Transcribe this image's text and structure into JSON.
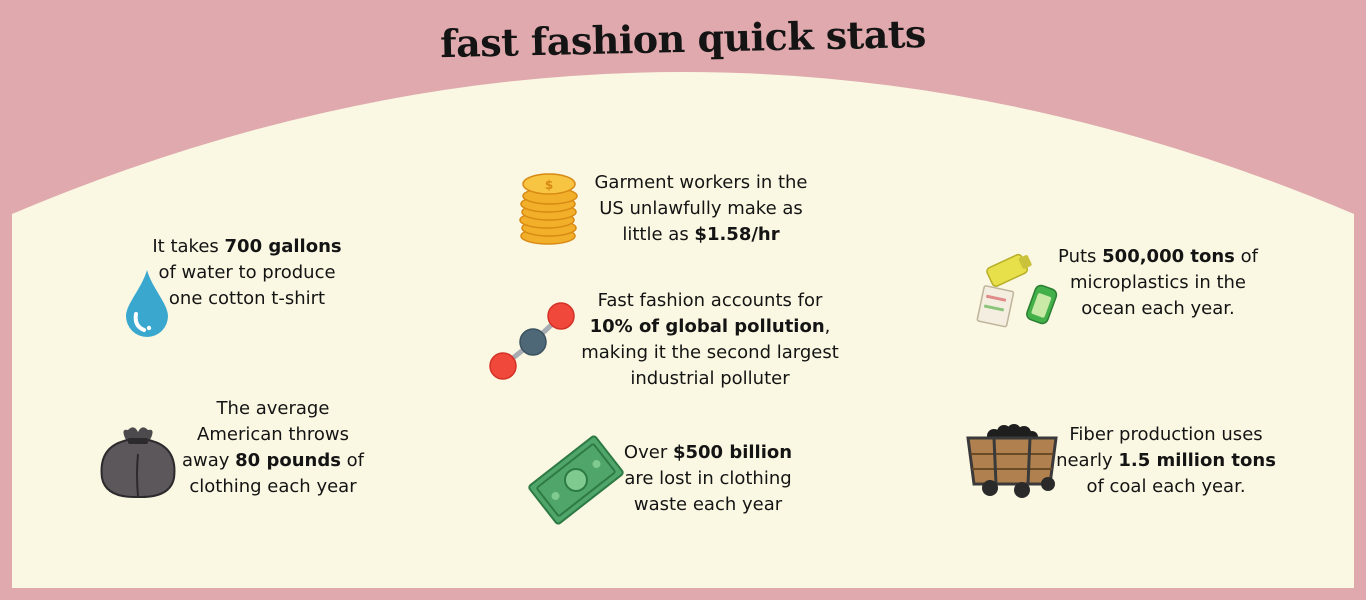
{
  "title": "fast fashion quick stats",
  "colors": {
    "background": "#dfa9ad",
    "panel": "#faf7e2",
    "text": "#141414"
  },
  "stats": {
    "water": {
      "icon": "water-drop-icon",
      "pre": "It takes ",
      "bold": "700 gallons",
      "post": " of water to produce one cotton t-shirt"
    },
    "clothing": {
      "icon": "trash-bag-icon",
      "pre": "The average American  throws away ",
      "bold": "80 pounds",
      "post": " of clothing each year"
    },
    "wages": {
      "icon": "coin-stack-icon",
      "pre": "Garment workers in the US unlawfully make as little as ",
      "bold": "$1.58/hr",
      "post": ""
    },
    "pollution": {
      "icon": "molecule-icon",
      "pre": "Fast fashion accounts for ",
      "bold": "10% of  global pollution",
      "post": ", making it the second largest industrial polluter"
    },
    "waste": {
      "icon": "dollar-bill-icon",
      "pre": "Over ",
      "bold": "$500 billion",
      "post": " are lost in clothing waste each year"
    },
    "microplastics": {
      "icon": "recycling-icon",
      "pre": "Puts ",
      "bold": "500,000 tons",
      "post": " of microplastics in the ocean each year."
    },
    "coal": {
      "icon": "coal-cart-icon",
      "pre": "Fiber production uses nearly ",
      "bold": "1.5 million tons",
      "post": " of coal each year."
    }
  }
}
